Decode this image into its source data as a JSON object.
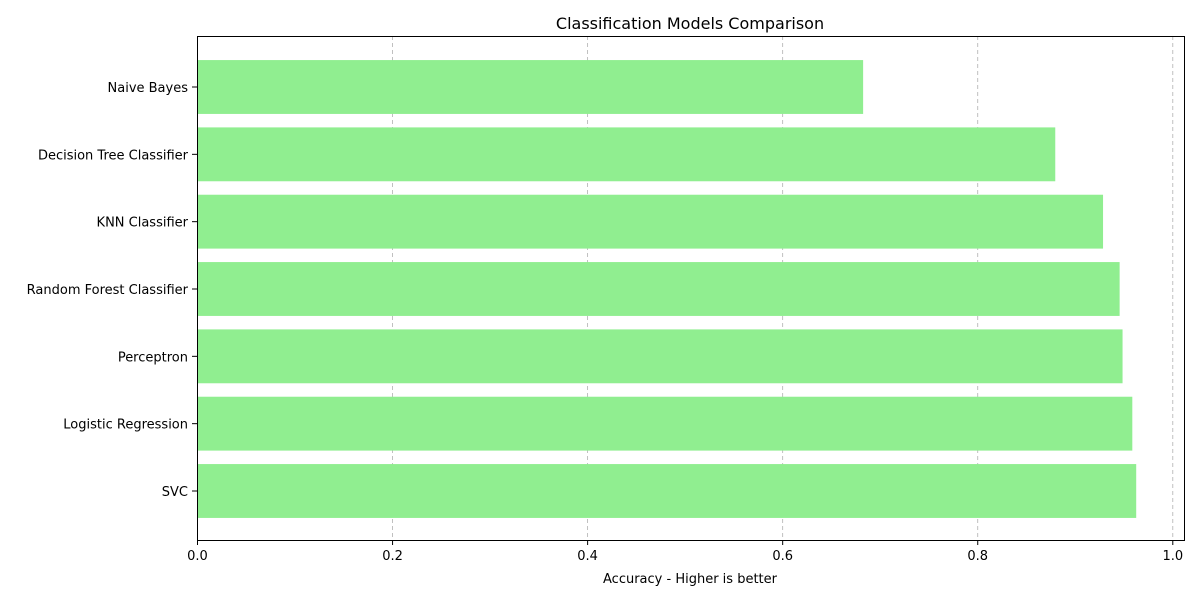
{
  "chart_data": {
    "type": "bar",
    "orientation": "horizontal",
    "title": "Classification Models Comparison",
    "xlabel": "Accuracy - Higher is better",
    "ylabel": "",
    "xlim": [
      0,
      1.012
    ],
    "x_ticks": [
      0.0,
      0.2,
      0.4,
      0.6,
      0.8,
      1.0
    ],
    "x_tick_labels": [
      "0.0",
      "0.2",
      "0.4",
      "0.6",
      "0.8",
      "1.0"
    ],
    "categories": [
      "SVC",
      "Logistic Regression",
      "Perceptron",
      "Random Forest Classifier",
      "KNN Classifier",
      "Decision Tree Classifier",
      "Naive Bayes"
    ],
    "values": [
      0.963,
      0.959,
      0.949,
      0.946,
      0.929,
      0.88,
      0.683
    ],
    "grid": "x-axis dashed",
    "legend": "none",
    "bar_color": "#90ee90"
  }
}
